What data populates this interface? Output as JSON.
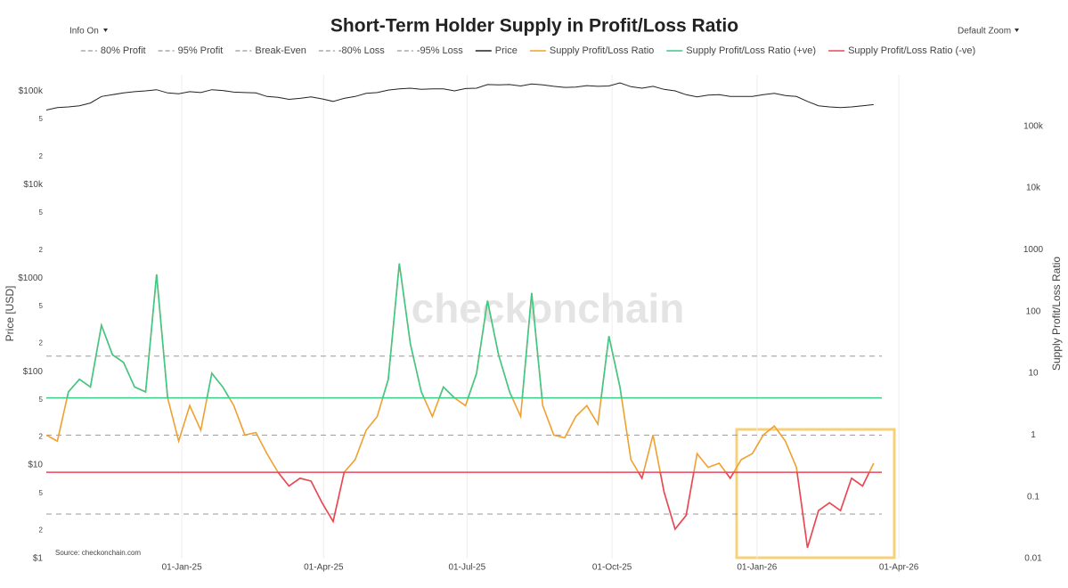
{
  "chart_data": {
    "type": "line",
    "title": "Short-Term Holder Supply in Profit/Loss Ratio",
    "controls": {
      "info": "Info On",
      "zoom": "Default Zoom"
    },
    "watermark": "checkonchain",
    "source": "Source: checkonchain.com",
    "ylabel": "Price [USD]",
    "y2label": "Supply Profit/Loss Ratio",
    "log_y": true,
    "log_y2": true,
    "grid": true,
    "legend": "top",
    "xlim": [
      "2024-10-07",
      "2026-06-14"
    ],
    "xticks": [
      {
        "value": "2025-01-01",
        "label": "01-Jan-25"
      },
      {
        "value": "2025-04-01",
        "label": "01-Apr-25"
      },
      {
        "value": "2025-07-01",
        "label": "01-Jul-25"
      },
      {
        "value": "2025-10-01",
        "label": "01-Oct-25"
      },
      {
        "value": "2026-01-01",
        "label": "01-Jan-26"
      },
      {
        "value": "2026-04-01",
        "label": "01-Apr-26"
      }
    ],
    "ylim": [
      1,
      150000
    ],
    "yticks": [
      {
        "value": 1,
        "label": "$1"
      },
      2,
      5,
      {
        "value": 10,
        "label": "$10"
      },
      {
        "value": 20,
        "label": "2"
      },
      {
        "value": 50,
        "label": "5"
      },
      {
        "value": 100,
        "label": "$100"
      },
      {
        "value": 200,
        "label": "2"
      },
      {
        "value": 500,
        "label": "5"
      },
      {
        "value": 1000,
        "label": "$1000"
      },
      {
        "value": 2000,
        "label": "2"
      },
      {
        "value": 5000,
        "label": "5"
      },
      {
        "value": 10000,
        "label": "$10k"
      },
      {
        "value": 20000,
        "label": "2"
      },
      {
        "value": 50000,
        "label": "5"
      },
      {
        "value": 100000,
        "label": "$100k"
      }
    ],
    "y2lim": [
      0.01,
      680000
    ],
    "y2ticks": [
      0.01,
      0.1,
      1,
      10,
      100,
      1000,
      {
        "value": 10000,
        "label": "10k"
      },
      {
        "value": 100000,
        "label": "100k"
      }
    ],
    "levels": [
      {
        "name": "80% Profit",
        "value": 4,
        "color": "#999999"
      },
      {
        "name": "95% Profit",
        "value": 19,
        "color": "#999999"
      },
      {
        "name": "Break-Even",
        "value": 1,
        "color": "#999999"
      },
      {
        "name": "-80% Loss",
        "value": 0.25,
        "color": "#999999"
      },
      {
        "name": "-95% Loss",
        "value": 0.0526,
        "color": "#999999"
      }
    ],
    "x": [
      "2024-10-07",
      "2024-10-14",
      "2024-10-21",
      "2024-10-28",
      "2024-11-04",
      "2024-11-11",
      "2024-11-18",
      "2024-11-25",
      "2024-12-02",
      "2024-12-09",
      "2024-12-16",
      "2024-12-23",
      "2024-12-30",
      "2025-01-06",
      "2025-01-13",
      "2025-01-20",
      "2025-01-27",
      "2025-02-03",
      "2025-02-10",
      "2025-02-17",
      "2025-02-24",
      "2025-03-03",
      "2025-03-10",
      "2025-03-17",
      "2025-03-24",
      "2025-03-31",
      "2025-04-07",
      "2025-04-14",
      "2025-04-21",
      "2025-04-28",
      "2025-05-05",
      "2025-05-12",
      "2025-05-19",
      "2025-05-26",
      "2025-06-02",
      "2025-06-09",
      "2025-06-16",
      "2025-06-23",
      "2025-06-30",
      "2025-07-07",
      "2025-07-14",
      "2025-07-21",
      "2025-07-28",
      "2025-08-04",
      "2025-08-11",
      "2025-08-18",
      "2025-08-25",
      "2025-09-01",
      "2025-09-08",
      "2025-09-15",
      "2025-09-22",
      "2025-09-29",
      "2025-10-06",
      "2025-10-13",
      "2025-10-20",
      "2025-10-27",
      "2025-11-03",
      "2025-11-10",
      "2025-11-17",
      "2025-11-24",
      "2025-12-01",
      "2025-12-08",
      "2025-12-15",
      "2025-12-22",
      "2025-12-29",
      "2026-01-05",
      "2026-01-12",
      "2026-01-19",
      "2026-01-26",
      "2026-02-02",
      "2026-02-09",
      "2026-02-16",
      "2026-02-23",
      "2026-03-02",
      "2026-03-09",
      "2026-03-16"
    ],
    "series": [
      {
        "name": "Price",
        "color": "#222222",
        "axis": "y",
        "values": [
          63000,
          67000,
          68000,
          70000,
          75000,
          88000,
          92000,
          96000,
          99000,
          101000,
          104000,
          96000,
          94000,
          99000,
          97000,
          104000,
          102000,
          98000,
          97000,
          96000,
          88000,
          86000,
          82000,
          84000,
          87000,
          83000,
          78000,
          84000,
          88000,
          95000,
          97000,
          103000,
          106000,
          108000,
          105000,
          106000,
          106000,
          101000,
          107000,
          108000,
          118000,
          117000,
          118000,
          114000,
          120000,
          117000,
          113000,
          110000,
          111000,
          115000,
          113000,
          114000,
          123000,
          112000,
          108000,
          113000,
          105000,
          101000,
          92000,
          87000,
          91000,
          92000,
          88000,
          88000,
          88000,
          92000,
          95000,
          90000,
          88000,
          78000,
          70000,
          68000,
          67000,
          68000,
          70000,
          72000
        ]
      },
      {
        "name": "Supply Profit/Loss Ratio",
        "color": "#f0a030",
        "axis": "y2",
        "values": [
          1.0,
          0.8,
          5,
          8,
          6,
          60,
          20,
          15,
          6,
          5,
          400,
          4,
          0.8,
          3,
          1.2,
          10,
          6,
          3,
          1,
          1.1,
          0.5,
          0.25,
          0.15,
          0.2,
          0.18,
          0.08,
          0.04,
          0.25,
          0.4,
          1.2,
          2,
          8,
          600,
          30,
          5,
          2,
          6,
          4,
          3,
          10,
          150,
          20,
          5,
          2,
          200,
          3,
          1,
          0.9,
          2,
          3,
          1.5,
          40,
          6,
          0.4,
          0.2,
          1.0,
          0.12,
          0.03,
          0.05,
          0.5,
          0.3,
          0.35,
          0.2,
          0.4,
          0.5,
          1.0,
          1.4,
          0.8,
          0.3,
          0.015,
          0.06,
          0.08,
          0.06,
          0.2,
          0.15,
          0.35
        ]
      },
      {
        "name": "Supply Profit/Loss Ratio (+ve)",
        "color": "#3cc98a",
        "axis": "y2",
        "threshold": 4
      },
      {
        "name": "Supply Profit/Loss Ratio (-ve)",
        "color": "#e8485c",
        "axis": "y2",
        "threshold": 0.25
      }
    ]
  }
}
